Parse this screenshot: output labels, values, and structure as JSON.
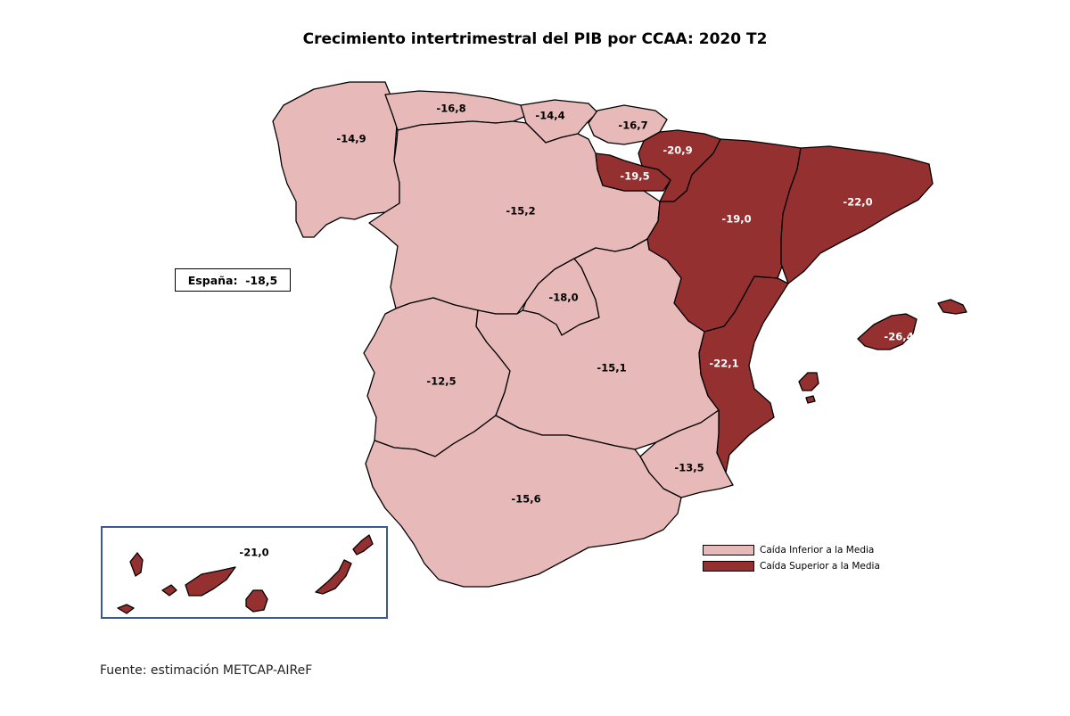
{
  "title": "Crecimiento intertrimestral del PIB por CCAA: 2020 T2",
  "spain_label": "España:",
  "spain_value": "-18,5",
  "source": "Fuente: estimación METCAP-AIReF",
  "colors": {
    "low": "#e8b9b9",
    "high": "#943030",
    "canarias_border": "#3b5998"
  },
  "legend": [
    {
      "label": "Caída Inferior a la Media",
      "class": "low"
    },
    {
      "label": "Caída Superior a la Media",
      "class": "high"
    }
  ],
  "regions": {
    "galicia": {
      "value": "-14,9",
      "class": "low"
    },
    "asturias": {
      "value": "-16,8",
      "class": "low"
    },
    "cantabria": {
      "value": "-14,4",
      "class": "low"
    },
    "pais_vasco": {
      "value": "-16,7",
      "class": "low"
    },
    "navarra": {
      "value": "-20,9",
      "class": "high"
    },
    "la_rioja": {
      "value": "-19,5",
      "class": "high"
    },
    "castilla_leon": {
      "value": "-15,2",
      "class": "low"
    },
    "aragon": {
      "value": "-19,0",
      "class": "high"
    },
    "cataluna": {
      "value": "-22,0",
      "class": "high"
    },
    "madrid": {
      "value": "-18,0",
      "class": "low"
    },
    "extremadura": {
      "value": "-12,5",
      "class": "low"
    },
    "castilla_la_mancha": {
      "value": "-15,1",
      "class": "low"
    },
    "comunidad_valenciana": {
      "value": "-22,1",
      "class": "high"
    },
    "baleares": {
      "value": "-26,4",
      "class": "high"
    },
    "murcia": {
      "value": "-13,5",
      "class": "low"
    },
    "andalucia": {
      "value": "-15,6",
      "class": "low"
    },
    "canarias": {
      "value": "-21,0",
      "class": "high"
    }
  }
}
